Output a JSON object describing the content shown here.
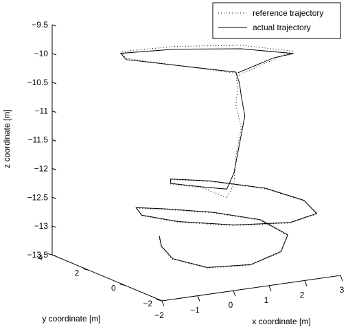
{
  "chart_data": {
    "type": "line",
    "projection": "3d",
    "title": "",
    "xlabel": "x coordinate [m]",
    "ylabel": "y coordinate [m]",
    "zlabel": "z coordinate [m]",
    "xlim": [
      -2,
      3
    ],
    "ylim": [
      -2,
      4
    ],
    "zlim": [
      -13.5,
      -9.5
    ],
    "z_direction": "reversed",
    "grid": false,
    "legend_position": "top-right",
    "x_ticks": [
      "-2",
      "-1",
      "0",
      "1",
      "2",
      "3"
    ],
    "y_ticks": [
      "-2",
      "0",
      "2",
      "4"
    ],
    "z_ticks": [
      "-9.5",
      "-10",
      "-10.5",
      "-11",
      "-11.5",
      "-12",
      "-12.5",
      "-13",
      "-13.5"
    ],
    "series": [
      {
        "name": "reference trajectory",
        "style": "dotted",
        "color": "#000000",
        "points": [
          [
            0.9,
            3.8,
            -13.45
          ],
          [
            0.6,
            3.1,
            -13.48
          ],
          [
            0.3,
            1.9,
            -13.5
          ],
          [
            0.5,
            0.4,
            -13.47
          ],
          [
            1.2,
            -0.6,
            -13.35
          ],
          [
            2.0,
            -0.7,
            -13.18
          ],
          [
            2.6,
            0.1,
            -13.05
          ],
          [
            2.5,
            1.4,
            -12.95
          ],
          [
            1.8,
            2.6,
            -12.92
          ],
          [
            0.9,
            3.5,
            -12.9
          ],
          [
            0.3,
            3.9,
            -12.88
          ],
          [
            0.1,
            3.2,
            -12.9
          ],
          [
            0.4,
            1.8,
            -12.85
          ],
          [
            1.2,
            0.3,
            -12.78
          ],
          [
            2.2,
            -0.8,
            -12.68
          ],
          [
            2.9,
            -0.9,
            -12.57
          ],
          [
            3.0,
            0.0,
            -12.47
          ],
          [
            2.6,
            1.3,
            -12.4
          ],
          [
            1.6,
            2.4,
            -12.33
          ],
          [
            0.7,
            2.8,
            -12.27
          ],
          [
            0.4,
            2.2,
            -12.24
          ],
          [
            0.9,
            1.4,
            -12.25
          ],
          [
            1.2,
            0.7,
            -12.35
          ],
          [
            1.3,
            0.5,
            -12.1
          ],
          [
            1.3,
            0.4,
            -11.6
          ],
          [
            1.4,
            0.3,
            -11.1
          ],
          [
            1.3,
            0.4,
            -10.7
          ],
          [
            1.3,
            0.3,
            -10.4
          ],
          [
            1.2,
            0.2,
            -10.12
          ],
          [
            -0.7,
            2.5,
            -10.0
          ],
          [
            -0.9,
            2.4,
            -9.85
          ],
          [
            0.2,
            1.6,
            -9.75
          ],
          [
            1.5,
            0.5,
            -9.7
          ],
          [
            2.3,
            -0.8,
            -9.7
          ],
          [
            2.0,
            -0.6,
            -9.8
          ],
          [
            1.2,
            0.1,
            -10.15
          ]
        ]
      },
      {
        "name": "actual trajectory",
        "style": "solid",
        "color": "#000000",
        "points": [
          [
            0.9,
            3.8,
            -13.4
          ],
          [
            0.6,
            3.1,
            -13.46
          ],
          [
            0.3,
            1.9,
            -13.49
          ],
          [
            0.5,
            0.4,
            -13.46
          ],
          [
            1.2,
            -0.6,
            -13.34
          ],
          [
            2.0,
            -0.7,
            -13.17
          ],
          [
            2.6,
            0.1,
            -13.04
          ],
          [
            2.5,
            1.4,
            -12.94
          ],
          [
            1.8,
            2.6,
            -12.91
          ],
          [
            0.9,
            3.5,
            -12.89
          ],
          [
            0.3,
            3.9,
            -12.87
          ],
          [
            0.1,
            3.2,
            -12.89
          ],
          [
            0.4,
            1.8,
            -12.84
          ],
          [
            1.2,
            0.3,
            -12.77
          ],
          [
            2.2,
            -0.8,
            -12.67
          ],
          [
            2.9,
            -0.9,
            -12.56
          ],
          [
            3.0,
            0.0,
            -12.46
          ],
          [
            2.6,
            1.3,
            -12.39
          ],
          [
            1.6,
            2.4,
            -12.32
          ],
          [
            0.7,
            2.8,
            -12.26
          ],
          [
            0.4,
            2.2,
            -12.23
          ],
          [
            0.9,
            1.4,
            -12.23
          ],
          [
            1.2,
            0.7,
            -12.2
          ],
          [
            1.3,
            0.5,
            -11.9
          ],
          [
            1.4,
            0.4,
            -11.4
          ],
          [
            1.5,
            0.3,
            -10.9
          ],
          [
            1.4,
            0.3,
            -10.55
          ],
          [
            1.3,
            0.2,
            -10.3
          ],
          [
            1.2,
            0.2,
            -10.1
          ],
          [
            -0.7,
            2.5,
            -10.02
          ],
          [
            -0.9,
            2.4,
            -9.88
          ],
          [
            0.2,
            1.6,
            -9.8
          ],
          [
            1.5,
            0.5,
            -9.76
          ],
          [
            2.3,
            -0.8,
            -9.74
          ],
          [
            1.9,
            -0.5,
            -9.82
          ],
          [
            1.2,
            0.1,
            -10.1
          ]
        ]
      }
    ]
  }
}
